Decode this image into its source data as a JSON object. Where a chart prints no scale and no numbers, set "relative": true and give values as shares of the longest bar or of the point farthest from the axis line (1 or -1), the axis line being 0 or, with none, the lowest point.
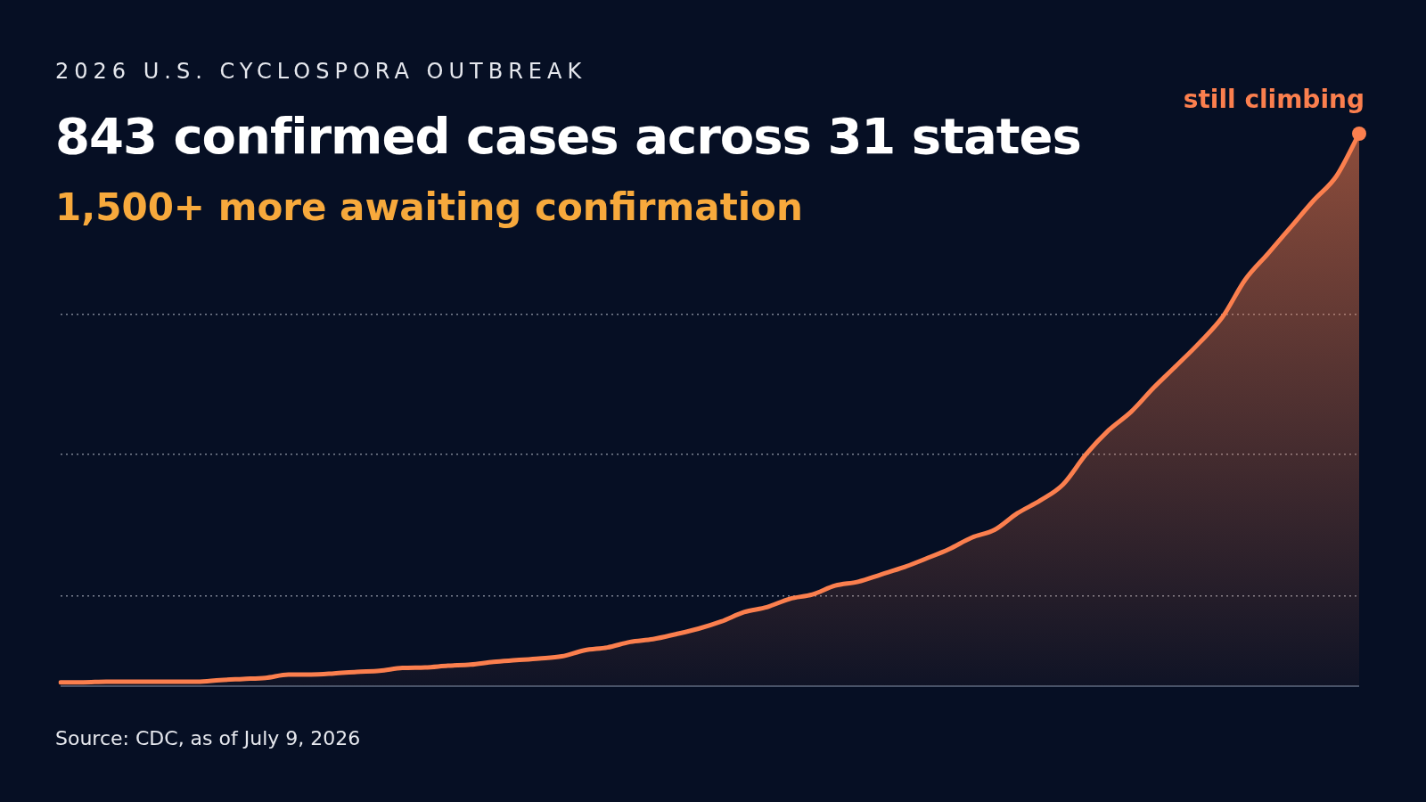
{
  "chart_data": {
    "type": "area",
    "title": "843 confirmed cases across 31 states",
    "subtitle": "1,500+ more awaiting confirmation",
    "annotations": [
      "2026 U.S. CYCLOSPORA OUTBREAK",
      "Source: CDC, as of July 9, 2026",
      "still climbing"
    ],
    "relative": true,
    "grid": "y",
    "marker": "none",
    "legend": false,
    "categories": [
      null,
      null,
      null,
      null,
      null,
      null,
      null,
      null,
      null,
      null,
      null,
      null,
      null,
      null,
      null,
      null,
      null,
      null,
      null,
      null,
      null,
      null,
      null,
      null,
      null,
      null,
      null,
      null,
      null,
      null,
      null,
      null,
      null,
      null,
      null,
      null,
      null,
      null,
      null,
      null,
      null,
      null,
      null,
      null,
      null,
      null,
      null,
      null,
      null,
      null,
      null,
      null,
      null,
      null,
      null,
      null,
      null,
      null
    ],
    "series": [
      {
        "color": "#fb7f4e",
        "values": [
          0.007,
          0.007,
          0.008,
          0.008,
          0.008,
          0.008,
          0.008,
          0.011,
          0.013,
          0.015,
          0.021,
          0.021,
          0.023,
          0.026,
          0.028,
          0.033,
          0.034,
          0.037,
          0.039,
          0.044,
          0.047,
          0.05,
          0.054,
          0.065,
          0.07,
          0.08,
          0.085,
          0.094,
          0.104,
          0.117,
          0.134,
          0.143,
          0.158,
          0.166,
          0.182,
          0.189,
          0.202,
          0.215,
          0.231,
          0.248,
          0.269,
          0.283,
          0.313,
          0.336,
          0.365,
          0.419,
          0.463,
          0.497,
          0.541,
          0.581,
          0.622,
          0.668,
          0.736,
          0.783,
          0.831,
          0.879,
          0.923,
          1
        ]
      }
    ]
  }
}
